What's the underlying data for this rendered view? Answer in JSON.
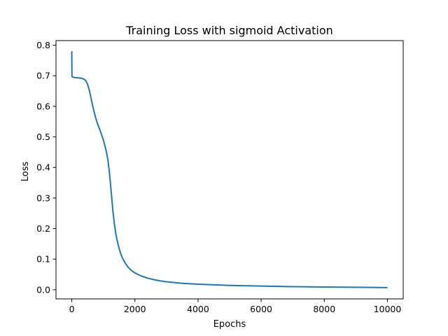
{
  "chart_data": {
    "type": "line",
    "title": "Training Loss with sigmoid Activation",
    "xlabel": "Epochs",
    "ylabel": "Loss",
    "xlim": [
      -500,
      10500
    ],
    "ylim": [
      -0.03,
      0.815
    ],
    "xticks": [
      0,
      2000,
      4000,
      6000,
      8000,
      10000
    ],
    "yticks": [
      0.0,
      0.1,
      0.2,
      0.3,
      0.4,
      0.5,
      0.6,
      0.7,
      0.8
    ],
    "ytick_labels": [
      "0.0",
      "0.1",
      "0.2",
      "0.3",
      "0.4",
      "0.5",
      "0.6",
      "0.7",
      "0.8"
    ],
    "grid": false,
    "series": [
      {
        "color": "#1f77b4",
        "x": [
          0,
          2,
          5,
          10,
          30,
          50,
          100,
          200,
          300,
          400,
          450,
          500,
          550,
          600,
          650,
          700,
          750,
          800,
          900,
          1000,
          1100,
          1150,
          1200,
          1250,
          1300,
          1350,
          1400,
          1450,
          1500,
          1550,
          1600,
          1650,
          1700,
          1800,
          1900,
          2000,
          2200,
          2400,
          2600,
          2800,
          3000,
          3500,
          4000,
          5000,
          6000,
          7000,
          8000,
          9000,
          10000
        ],
        "y": [
          0.78,
          0.74,
          0.7,
          0.697,
          0.696,
          0.695,
          0.694,
          0.693,
          0.692,
          0.688,
          0.683,
          0.672,
          0.655,
          0.632,
          0.607,
          0.585,
          0.565,
          0.548,
          0.52,
          0.49,
          0.45,
          0.42,
          0.375,
          0.32,
          0.26,
          0.215,
          0.18,
          0.155,
          0.135,
          0.118,
          0.105,
          0.095,
          0.086,
          0.072,
          0.062,
          0.055,
          0.045,
          0.038,
          0.033,
          0.029,
          0.026,
          0.021,
          0.018,
          0.014,
          0.012,
          0.01,
          0.009,
          0.008,
          0.007
        ]
      }
    ]
  }
}
